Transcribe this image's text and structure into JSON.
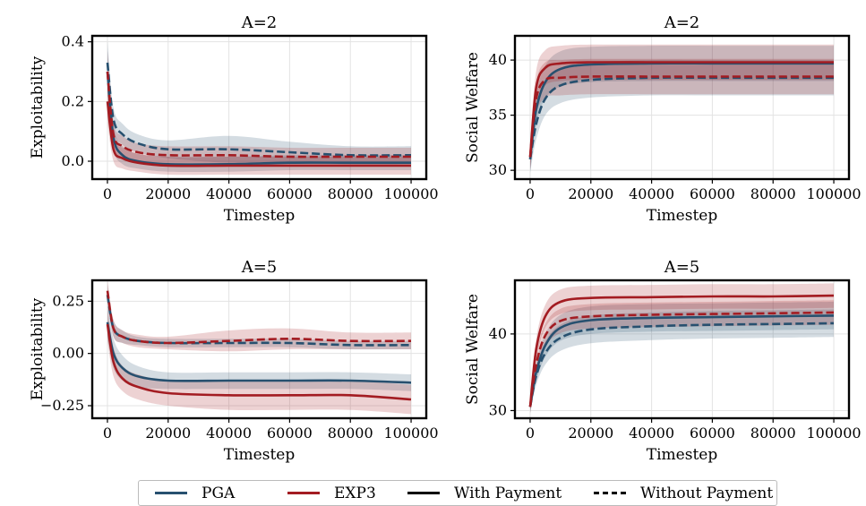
{
  "colors": {
    "pga": "#27506f",
    "exp3": "#a31c22",
    "frame": "#000000",
    "grid": "#e3e3e3"
  },
  "legend": {
    "items": [
      {
        "label": "PGA",
        "color": "#27506f",
        "style": "solid"
      },
      {
        "label": "EXP3",
        "color": "#a31c22",
        "style": "solid"
      },
      {
        "label": "With Payment",
        "color": "#000000",
        "style": "solid"
      },
      {
        "label": "Without Payment",
        "color": "#000000",
        "style": "dashed"
      }
    ]
  },
  "chart_data": [
    {
      "type": "line",
      "title": "A=2",
      "xlabel": "Timestep",
      "ylabel": "Exploitability",
      "xlim": [
        -5000,
        105000
      ],
      "ylim": [
        -0.06,
        0.42
      ],
      "xticks": [
        0,
        20000,
        40000,
        60000,
        80000,
        100000
      ],
      "xtick_labels": [
        "0",
        "20000",
        "40000",
        "60000",
        "80000",
        "100000"
      ],
      "yticks": [
        0.0,
        0.2,
        0.4
      ],
      "ytick_labels": [
        "0.0",
        "0.2",
        "0.4"
      ],
      "grid": true,
      "x": [
        0,
        2000,
        5000,
        10000,
        20000,
        40000,
        60000,
        80000,
        100000
      ],
      "series": [
        {
          "name": "PGA",
          "payment": "With Payment",
          "values": [
            0.3,
            0.08,
            0.02,
            0.0,
            -0.01,
            -0.01,
            -0.005,
            -0.005,
            -0.005
          ],
          "band": [
            0.07,
            0.04,
            0.03,
            0.025,
            0.025,
            0.025,
            0.025,
            0.025,
            0.025
          ]
        },
        {
          "name": "PGA",
          "payment": "Without Payment",
          "values": [
            0.33,
            0.14,
            0.09,
            0.06,
            0.04,
            0.04,
            0.03,
            0.02,
            0.02
          ],
          "band": [
            0.07,
            0.04,
            0.035,
            0.03,
            0.03,
            0.045,
            0.035,
            0.03,
            0.03
          ]
        },
        {
          "name": "EXP3",
          "payment": "With Payment",
          "values": [
            0.2,
            0.04,
            0.01,
            -0.005,
            -0.015,
            -0.015,
            -0.015,
            -0.015,
            -0.015
          ],
          "band": [
            0.07,
            0.04,
            0.035,
            0.03,
            0.03,
            0.03,
            0.03,
            0.03,
            0.03
          ]
        },
        {
          "name": "EXP3",
          "payment": "Without Payment",
          "values": [
            0.3,
            0.09,
            0.05,
            0.03,
            0.02,
            0.02,
            0.015,
            0.015,
            0.015
          ],
          "band": [
            0.07,
            0.04,
            0.035,
            0.03,
            0.03,
            0.03,
            0.03,
            0.03,
            0.03
          ]
        }
      ]
    },
    {
      "type": "line",
      "title": "A=2",
      "xlabel": "Timestep",
      "ylabel": "Social Welfare",
      "xlim": [
        -5000,
        105000
      ],
      "ylim": [
        29.2,
        42.2
      ],
      "xticks": [
        0,
        20000,
        40000,
        60000,
        80000,
        100000
      ],
      "xtick_labels": [
        "0",
        "20000",
        "40000",
        "60000",
        "80000",
        "100000"
      ],
      "yticks": [
        30,
        35,
        40
      ],
      "ytick_labels": [
        "30",
        "35",
        "40"
      ],
      "grid": true,
      "x": [
        0,
        2000,
        5000,
        10000,
        20000,
        40000,
        60000,
        80000,
        100000
      ],
      "series": [
        {
          "name": "PGA",
          "payment": "With Payment",
          "values": [
            31.0,
            35.5,
            38.0,
            39.2,
            39.6,
            39.7,
            39.7,
            39.7,
            39.7
          ],
          "band": [
            1.2,
            1.4,
            1.5,
            1.6,
            1.6,
            1.6,
            1.6,
            1.6,
            1.6
          ]
        },
        {
          "name": "PGA",
          "payment": "Without Payment",
          "values": [
            31.0,
            34.2,
            36.5,
            37.7,
            38.2,
            38.4,
            38.4,
            38.4,
            38.4
          ],
          "band": [
            1.2,
            1.4,
            1.5,
            1.6,
            1.6,
            1.6,
            1.6,
            1.6,
            1.6
          ]
        },
        {
          "name": "EXP3",
          "payment": "With Payment",
          "values": [
            31.2,
            37.5,
            39.3,
            39.7,
            39.8,
            39.8,
            39.8,
            39.8,
            39.8
          ],
          "band": [
            1.2,
            1.5,
            1.6,
            1.6,
            1.6,
            1.6,
            1.6,
            1.6,
            1.6
          ]
        },
        {
          "name": "EXP3",
          "payment": "Without Payment",
          "values": [
            31.2,
            36.5,
            38.2,
            38.4,
            38.5,
            38.5,
            38.5,
            38.5,
            38.5
          ],
          "band": [
            1.2,
            1.5,
            1.6,
            1.6,
            1.6,
            1.6,
            1.6,
            1.6,
            1.6
          ]
        }
      ]
    },
    {
      "type": "line",
      "title": "A=5",
      "xlabel": "Timestep",
      "ylabel": "Exploitability",
      "xlim": [
        -5000,
        105000
      ],
      "ylim": [
        -0.31,
        0.35
      ],
      "xticks": [
        0,
        20000,
        40000,
        60000,
        80000,
        100000
      ],
      "xtick_labels": [
        "0",
        "20000",
        "40000",
        "60000",
        "80000",
        "100000"
      ],
      "yticks": [
        -0.25,
        0.0,
        0.25
      ],
      "ytick_labels": [
        "−0.25",
        "0.00",
        "0.25"
      ],
      "grid": true,
      "x": [
        0,
        2000,
        5000,
        10000,
        20000,
        40000,
        60000,
        80000,
        100000
      ],
      "series": [
        {
          "name": "PGA",
          "payment": "With Payment",
          "values": [
            0.15,
            0.0,
            -0.07,
            -0.11,
            -0.13,
            -0.13,
            -0.13,
            -0.13,
            -0.14
          ],
          "band": [
            0.08,
            0.07,
            0.06,
            0.05,
            0.04,
            0.04,
            0.04,
            0.04,
            0.04
          ]
        },
        {
          "name": "PGA",
          "payment": "Without Payment",
          "values": [
            0.28,
            0.12,
            0.08,
            0.06,
            0.05,
            0.05,
            0.05,
            0.04,
            0.04
          ],
          "band": [
            0.05,
            0.04,
            0.03,
            0.02,
            0.02,
            0.02,
            0.02,
            0.02,
            0.02
          ]
        },
        {
          "name": "EXP3",
          "payment": "With Payment",
          "values": [
            0.14,
            -0.04,
            -0.12,
            -0.16,
            -0.19,
            -0.2,
            -0.2,
            -0.2,
            -0.22
          ],
          "band": [
            0.08,
            0.07,
            0.06,
            0.06,
            0.06,
            0.07,
            0.07,
            0.07,
            0.07
          ]
        },
        {
          "name": "EXP3",
          "payment": "Without Payment",
          "values": [
            0.3,
            0.12,
            0.08,
            0.06,
            0.05,
            0.06,
            0.07,
            0.06,
            0.06
          ],
          "band": [
            0.05,
            0.04,
            0.03,
            0.03,
            0.03,
            0.05,
            0.05,
            0.04,
            0.04
          ]
        }
      ]
    },
    {
      "type": "line",
      "title": "A=5",
      "xlabel": "Timestep",
      "ylabel": "Social Welfare",
      "xlim": [
        -5000,
        105000
      ],
      "ylim": [
        29.0,
        47.0
      ],
      "xticks": [
        0,
        20000,
        40000,
        60000,
        80000,
        100000
      ],
      "xtick_labels": [
        "0",
        "20000",
        "40000",
        "60000",
        "80000",
        "100000"
      ],
      "yticks": [
        30,
        40
      ],
      "ytick_labels": [
        "30",
        "40"
      ],
      "grid": true,
      "x": [
        0,
        2000,
        5000,
        10000,
        20000,
        40000,
        60000,
        80000,
        100000
      ],
      "series": [
        {
          "name": "PGA",
          "payment": "With Payment",
          "values": [
            30.5,
            35.0,
            38.5,
            40.8,
            41.8,
            42.1,
            42.2,
            42.3,
            42.4
          ],
          "band": [
            0.8,
            1.2,
            1.5,
            1.7,
            1.8,
            1.8,
            1.8,
            1.8,
            1.8
          ]
        },
        {
          "name": "PGA",
          "payment": "Without Payment",
          "values": [
            30.5,
            34.5,
            37.5,
            39.5,
            40.6,
            41.0,
            41.2,
            41.3,
            41.4
          ],
          "band": [
            0.8,
            1.2,
            1.5,
            1.7,
            1.8,
            1.8,
            1.8,
            1.8,
            1.8
          ]
        },
        {
          "name": "EXP3",
          "payment": "With Payment",
          "values": [
            30.5,
            38.0,
            42.3,
            44.2,
            44.7,
            44.8,
            44.9,
            44.9,
            45.0
          ],
          "band": [
            0.8,
            1.3,
            1.5,
            1.6,
            1.6,
            1.6,
            1.6,
            1.6,
            1.6
          ]
        },
        {
          "name": "EXP3",
          "payment": "Without Payment",
          "values": [
            30.5,
            36.0,
            39.8,
            41.7,
            42.3,
            42.5,
            42.6,
            42.7,
            42.8
          ],
          "band": [
            0.8,
            1.3,
            1.5,
            1.6,
            1.6,
            1.6,
            1.6,
            1.6,
            1.6
          ]
        }
      ]
    }
  ]
}
